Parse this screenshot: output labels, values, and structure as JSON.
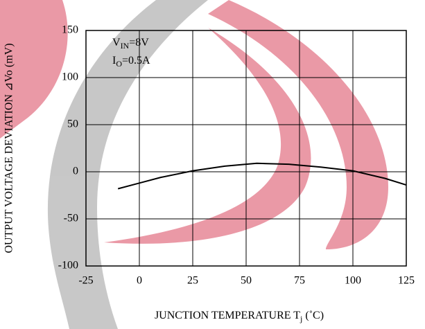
{
  "chart_data": {
    "type": "line",
    "x_label": {
      "text": "JUNCTION TEMPERATURE T",
      "sub": "j",
      "rest": " (˚C)"
    },
    "y_label": "OUTPUT VOLTAGE DEVIATION ⊿Vo  (mV)",
    "annotations": [
      {
        "text": "V",
        "sub": "IN",
        "rest": "=8V"
      },
      {
        "text": "I",
        "sub": "O",
        "rest": "=0.5A"
      }
    ],
    "x": [
      -10,
      0,
      10,
      25,
      40,
      55,
      70,
      85,
      100,
      115,
      125
    ],
    "series": [
      {
        "color": "#000000",
        "values": [
          -18,
          -12,
          -6,
          1,
          6,
          9,
          8,
          5,
          1,
          -7,
          -14
        ]
      }
    ],
    "xlim": [
      -25,
      125
    ],
    "ylim": [
      -100,
      150
    ],
    "xticks": [
      -25,
      0,
      25,
      50,
      75,
      100,
      125
    ],
    "yticks": [
      -100,
      -50,
      0,
      50,
      100,
      150
    ],
    "grid": true
  }
}
